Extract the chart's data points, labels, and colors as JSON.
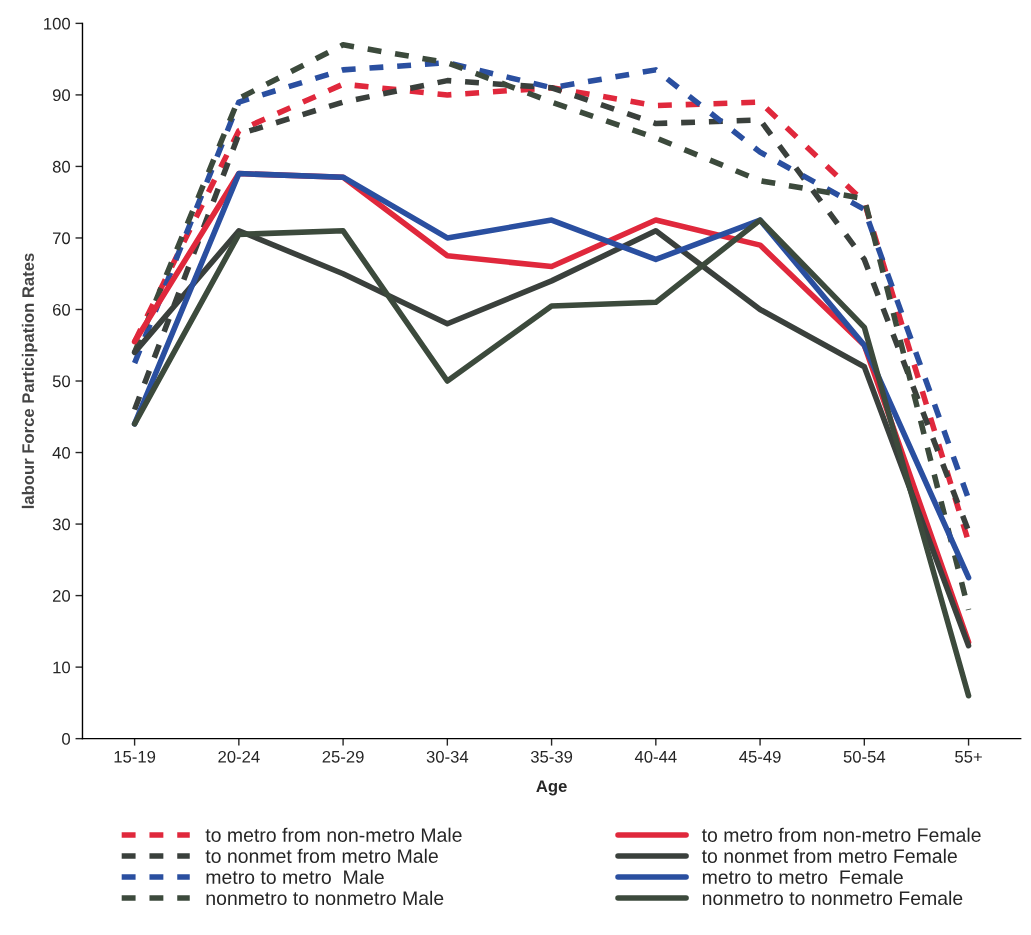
{
  "chart_data": {
    "type": "line",
    "xlabel": "Age",
    "ylabel": "labour Force Participation Rates",
    "categories": [
      "15-19",
      "20-24",
      "25-29",
      "30-34",
      "35-39",
      "40-44",
      "45-49",
      "50-54",
      "55+"
    ],
    "ylim": [
      0,
      100
    ],
    "yticks": [
      0,
      10,
      20,
      30,
      40,
      50,
      60,
      70,
      80,
      90,
      100
    ],
    "grid": false,
    "legend": "bottom",
    "marker": "none",
    "series": [
      {
        "name": "to metro from non-metro Male",
        "color": "#e0283c",
        "line_style": "dashed",
        "values": [
          55.5,
          85,
          91.5,
          90,
          91,
          88.5,
          89,
          75,
          27.5
        ]
      },
      {
        "name": "to nonmet from metro Male",
        "color": "#3a403c",
        "line_style": "dashed",
        "values": [
          46,
          84.5,
          89,
          92,
          91,
          86,
          86.5,
          67,
          29
        ]
      },
      {
        "name": "metro to metro  Male",
        "color": "#2a4fa0",
        "line_style": "dashed",
        "values": [
          52.5,
          89,
          93.5,
          94.5,
          91,
          93.5,
          82,
          74,
          33.5
        ]
      },
      {
        "name": "nonmetro to nonmetro Male",
        "color": "#3c4a3c",
        "line_style": "dashed",
        "values": [
          54,
          89.5,
          97,
          94.5,
          89,
          84,
          78,
          75.5,
          18
        ]
      },
      {
        "name": "to metro from non-metro Female",
        "color": "#e0283c",
        "line_style": "solid",
        "values": [
          55.5,
          79,
          78.5,
          67.5,
          66,
          72.5,
          69,
          55,
          13.5
        ]
      },
      {
        "name": "to nonmet from metro Female",
        "color": "#3a403c",
        "line_style": "solid",
        "values": [
          54,
          71,
          65,
          58,
          64,
          71,
          60,
          52,
          13
        ]
      },
      {
        "name": "metro to metro  Female",
        "color": "#2a4fa0",
        "line_style": "solid",
        "values": [
          44,
          79,
          78.5,
          70,
          72.5,
          67,
          72.5,
          55,
          22.5
        ]
      },
      {
        "name": "nonmetro to nonmetro Female",
        "color": "#3c4a3c",
        "line_style": "solid",
        "values": [
          44,
          70.5,
          71,
          50,
          60.5,
          61,
          72.5,
          57.5,
          6
        ]
      }
    ]
  }
}
